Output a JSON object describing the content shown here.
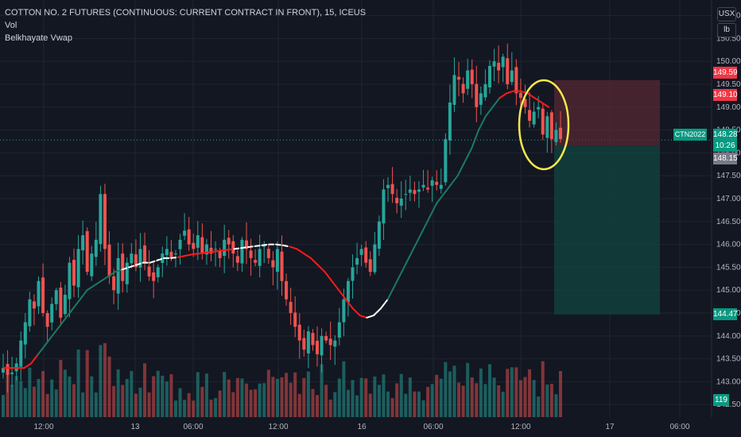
{
  "header": {
    "symbol_title": "COTTON NO. 2 FUTURES (CONTINUOUS: CURRENT CONTRACT IN FRONT), 15, ICEUS",
    "volume_label": "Vol",
    "indicator_label": "Belkhayate Vwap"
  },
  "axis_buttons": {
    "currency": "USX",
    "unit": "lb"
  },
  "colors": {
    "background": "#131722",
    "up": "#26a69a",
    "down": "#ef5350",
    "vwap_up": "#1b7a63",
    "vwap_down": "#ff1a1a",
    "vwap_neutral": "#ffffff",
    "highlight_circle": "#f5e84b",
    "stop_zone": "#5a2a33",
    "target_zone": "#12423f"
  },
  "price_tags": {
    "stop_price": "149.59",
    "current_red": "149.10",
    "last_price": "148.28",
    "symbol_code": "CTN2022",
    "countdown": "10:26",
    "gray_price": "148.15",
    "target_price": "144.47",
    "volume_value": "119"
  },
  "chart_data": {
    "type": "candlestick",
    "title": "COTTON NO. 2 FUTURES (CONTINUOUS: CURRENT CONTRACT IN FRONT), 15, ICEUS",
    "y_range": [
      142.4,
      151.2
    ],
    "y_ticks": [
      "142.50",
      "143.00",
      "143.50",
      "144.00",
      "144.50",
      "145.00",
      "145.50",
      "146.00",
      "146.50",
      "147.00",
      "147.50",
      "148.00",
      "148.50",
      "149.00",
      "149.50",
      "150.00",
      "150.50",
      "151.00"
    ],
    "x_ticks": [
      "12:00",
      "13",
      "06:00",
      "12:00",
      "16",
      "06:00",
      "12:00",
      "17",
      "06:00"
    ],
    "grid": true,
    "trade_setup": {
      "entry": 148.15,
      "stop": 149.59,
      "target": 144.47
    },
    "close_path": [
      143.3,
      143.15,
      143.2,
      143.4,
      143.9,
      144.3,
      144.8,
      144.6,
      145.2,
      144.5,
      144.2,
      144.7,
      145.0,
      144.4,
      144.9,
      145.6,
      145.1,
      145.9,
      146.2,
      145.4,
      145.8,
      146.1,
      147.1,
      145.9,
      145.3,
      145.0,
      145.7,
      145.2,
      145.6,
      145.8,
      145.5,
      145.9,
      145.6,
      145.3,
      145.2,
      145.5,
      145.8,
      145.9,
      145.7,
      145.8,
      146.1,
      146.3,
      146.0,
      145.9,
      146.2,
      145.8,
      146.0,
      145.8,
      145.9,
      145.7,
      146.1,
      146.0,
      145.8,
      145.6,
      146.1,
      145.9,
      145.7,
      145.6,
      145.9,
      146.0,
      145.7,
      145.5,
      145.9,
      145.2,
      144.8,
      144.5,
      144.2,
      143.9,
      143.7,
      144.1,
      143.8,
      143.6,
      144.0,
      143.9,
      143.8,
      143.9,
      144.3,
      144.8,
      145.2,
      145.5,
      145.7,
      145.9,
      145.6,
      145.4,
      146.0,
      146.5,
      147.2,
      147.3,
      147.1,
      146.9,
      147.0,
      147.1,
      147.2,
      147.1,
      147.2,
      147.3,
      147.2,
      147.4,
      147.3,
      147.3,
      148.3,
      149.1,
      149.7,
      149.6,
      149.3,
      149.8,
      149.5,
      149.0,
      149.3,
      149.5,
      149.9,
      150.0,
      149.8,
      150.1,
      149.5,
      149.8,
      149.3,
      149.2,
      149.0,
      148.7,
      148.9,
      149.0,
      148.4,
      148.8,
      148.3,
      148.5,
      148.3
    ],
    "vwap": [
      143.3,
      143.3,
      143.3,
      143.3,
      143.4,
      143.6,
      143.8,
      144.0,
      144.2,
      144.4,
      144.6,
      144.8,
      145.0,
      145.1,
      145.2,
      145.3,
      145.4,
      145.45,
      145.5,
      145.55,
      145.6,
      145.6,
      145.65,
      145.7,
      145.7,
      145.72,
      145.75,
      145.78,
      145.8,
      145.82,
      145.84,
      145.86,
      145.88,
      145.9,
      145.92,
      145.94,
      145.96,
      145.98,
      146.0,
      146.0,
      145.98,
      145.95,
      145.9,
      145.8,
      145.7,
      145.55,
      145.4,
      145.2,
      145.0,
      144.8,
      144.6,
      144.45,
      144.4,
      144.45,
      144.6,
      144.8,
      145.1,
      145.4,
      145.7,
      146.0,
      146.3,
      146.6,
      146.9,
      147.1,
      147.3,
      147.5,
      147.8,
      148.1,
      148.5,
      148.8,
      149.0,
      149.2,
      149.3,
      149.35,
      149.35,
      149.3,
      149.2,
      149.1,
      149.0
    ],
    "volume_range": [
      0,
      400
    ]
  }
}
